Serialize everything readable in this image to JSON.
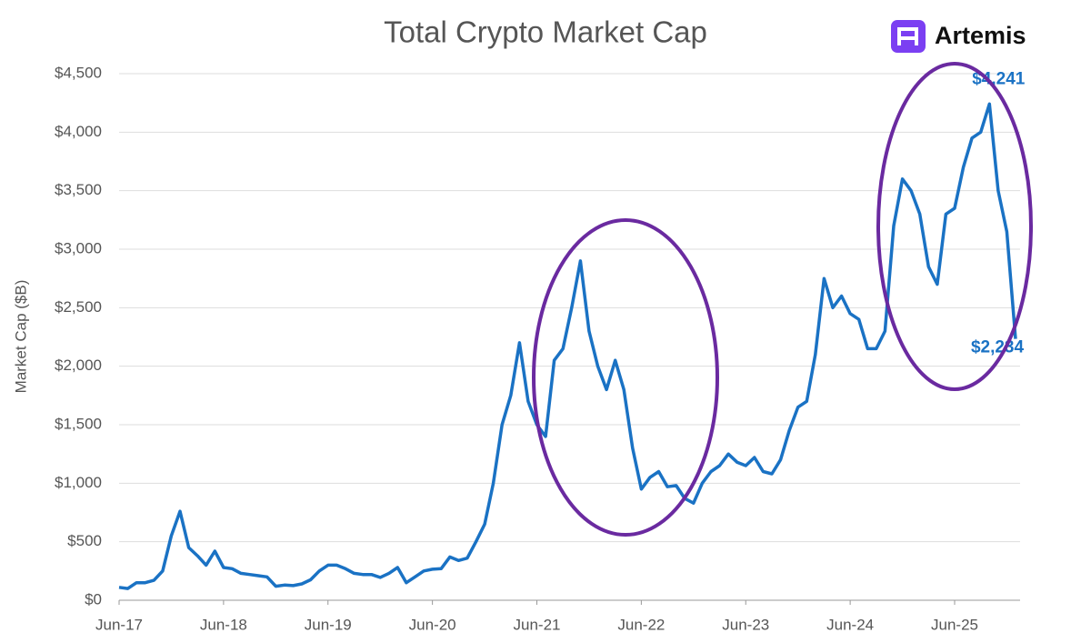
{
  "chart_data": {
    "type": "line",
    "title": "Total Crypto Market Cap",
    "logo": "Artemis",
    "y_label": "Market Cap ($B)",
    "x": [
      "Jun-17",
      "Jul-17",
      "Aug-17",
      "Sep-17",
      "Oct-17",
      "Nov-17",
      "Dec-17",
      "Jan-18",
      "Feb-18",
      "Mar-18",
      "Apr-18",
      "May-18",
      "Jun-18",
      "Jul-18",
      "Aug-18",
      "Sep-18",
      "Oct-18",
      "Nov-18",
      "Dec-18",
      "Jan-19",
      "Feb-19",
      "Mar-19",
      "Apr-19",
      "May-19",
      "Jun-19",
      "Jul-19",
      "Aug-19",
      "Sep-19",
      "Oct-19",
      "Nov-19",
      "Dec-19",
      "Jan-20",
      "Feb-20",
      "Mar-20",
      "Apr-20",
      "May-20",
      "Jun-20",
      "Jul-20",
      "Aug-20",
      "Sep-20",
      "Oct-20",
      "Nov-20",
      "Dec-20",
      "Jan-21",
      "Feb-21",
      "Mar-21",
      "Apr-21",
      "May-21",
      "Jun-21",
      "Jul-21",
      "Aug-21",
      "Sep-21",
      "Oct-21",
      "Nov-21",
      "Dec-21",
      "Jan-22",
      "Feb-22",
      "Mar-22",
      "Apr-22",
      "May-22",
      "Jun-22",
      "Jul-22",
      "Aug-22",
      "Sep-22",
      "Oct-22",
      "Nov-22",
      "Dec-22",
      "Jan-23",
      "Feb-23",
      "Mar-23",
      "Apr-23",
      "May-23",
      "Jun-23",
      "Jul-23",
      "Aug-23",
      "Sep-23",
      "Oct-23",
      "Nov-23",
      "Dec-23",
      "Jan-24",
      "Feb-24",
      "Mar-24",
      "Apr-24",
      "May-24",
      "Jun-24",
      "Jul-24",
      "Aug-24",
      "Sep-24",
      "Oct-24",
      "Nov-24",
      "Dec-24",
      "Jan-25",
      "Feb-25",
      "Mar-25",
      "Apr-25",
      "May-25",
      "Jun-25",
      "Jul-25",
      "Aug-25",
      "Sep-25",
      "Oct-25",
      "Nov-25",
      "Dec-25",
      "Jan-26"
    ],
    "xticks": [
      "Jun-17",
      "Jun-18",
      "Jun-19",
      "Jun-20",
      "Jun-21",
      "Jun-22",
      "Jun-23",
      "Jun-24",
      "Jun-25"
    ],
    "series": [
      {
        "name": "Total Crypto Market Cap",
        "color": "#1a72c4",
        "values": [
          110,
          100,
          150,
          150,
          170,
          250,
          550,
          760,
          450,
          380,
          300,
          420,
          280,
          270,
          230,
          220,
          210,
          200,
          120,
          130,
          125,
          140,
          175,
          250,
          300,
          300,
          270,
          230,
          220,
          220,
          195,
          230,
          280,
          150,
          200,
          250,
          265,
          270,
          370,
          340,
          360,
          500,
          650,
          1000,
          1500,
          1750,
          2200,
          1700,
          1500,
          1400,
          2050,
          2150,
          2500,
          2900,
          2300,
          2000,
          1800,
          2050,
          1800,
          1300,
          950,
          1050,
          1100,
          970,
          980,
          870,
          830,
          1000,
          1100,
          1150,
          1250,
          1180,
          1150,
          1220,
          1100,
          1080,
          1200,
          1450,
          1650,
          1700,
          2100,
          2750,
          2500,
          2600,
          2450,
          2400,
          2150,
          2150,
          2300,
          3200,
          3600,
          3500,
          3300,
          2850,
          2700,
          3300,
          3350,
          3700,
          3950,
          4000,
          4241,
          3500,
          3150,
          2234
        ],
        "value_labels": [
          null,
          null,
          null,
          null,
          null,
          null,
          null,
          null,
          null,
          null,
          null,
          null,
          null,
          null,
          null,
          null,
          null,
          null,
          null,
          null,
          null,
          null,
          null,
          null,
          null,
          null,
          null,
          null,
          null,
          null,
          null,
          null,
          null,
          null,
          null,
          null,
          null,
          null,
          null,
          null,
          null,
          null,
          null,
          null,
          null,
          null,
          null,
          null,
          null,
          null,
          null,
          null,
          null,
          null,
          null,
          null,
          null,
          null,
          null,
          null,
          null,
          null,
          null,
          null,
          null,
          null,
          null,
          null,
          null,
          null,
          null,
          null,
          null,
          null,
          null,
          null,
          null,
          null,
          null,
          null,
          null,
          null,
          null,
          null,
          null,
          null,
          null,
          null,
          null,
          null,
          null,
          null,
          null,
          null,
          null,
          null,
          null,
          null,
          null,
          null,
          "$4,241",
          null,
          null,
          "$2,234"
        ]
      }
    ],
    "ylim": [
      0,
      4500
    ],
    "yticks": [
      {
        "value": 0,
        "label": "$0"
      },
      {
        "value": 500,
        "label": "$500"
      },
      {
        "value": 1000,
        "label": "$1,000"
      },
      {
        "value": 1500,
        "label": "$1,500"
      },
      {
        "value": 2000,
        "label": "$2,000"
      },
      {
        "value": 2500,
        "label": "$2,500"
      },
      {
        "value": 3000,
        "label": "$3,000"
      },
      {
        "value": 3500,
        "label": "$3,500"
      },
      {
        "value": 4000,
        "label": "$4,000"
      },
      {
        "value": 4500,
        "label": "$4,500"
      }
    ],
    "grid": true
  }
}
